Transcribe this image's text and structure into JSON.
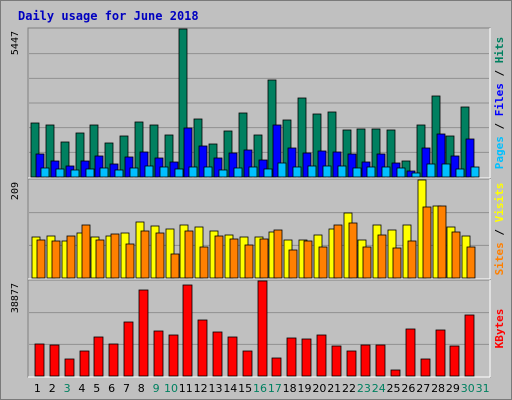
{
  "title": "Daily usage for June 2018",
  "chart_data": [
    {
      "type": "bar",
      "panel": "pages-files-hits",
      "ymax_label": "5447",
      "ylim": [
        0,
        5447
      ],
      "right_label": [
        {
          "text": "Pages",
          "color": "#00c0ff"
        },
        {
          "text": " / ",
          "color": "#000000"
        },
        {
          "text": "Files",
          "color": "#0000ff"
        },
        {
          "text": " / ",
          "color": "#000000"
        },
        {
          "text": "Hits",
          "color": "#008060"
        }
      ],
      "categories": [
        "1",
        "2",
        "3",
        "4",
        "5",
        "6",
        "7",
        "8",
        "9",
        "10",
        "11",
        "12",
        "13",
        "14",
        "15",
        "16",
        "17",
        "18",
        "19",
        "20",
        "21",
        "22",
        "23",
        "24",
        "25",
        "26",
        "27",
        "28",
        "29",
        "30"
      ],
      "series": [
        {
          "name": "Hits",
          "color": "#008060",
          "values": [
            1970,
            1900,
            1300,
            1630,
            1920,
            1250,
            1520,
            2040,
            1900,
            1550,
            5447,
            2120,
            1200,
            1710,
            2350,
            1550,
            3560,
            2090,
            2920,
            2330,
            2380,
            1730,
            1780,
            1760,
            1720,
            600,
            1900,
            2990,
            1500,
            2590
          ]
        },
        {
          "name": "Files",
          "color": "#0000ff",
          "values": [
            830,
            580,
            420,
            580,
            760,
            480,
            740,
            930,
            700,
            560,
            1800,
            1150,
            710,
            880,
            1010,
            620,
            1930,
            1080,
            870,
            950,
            930,
            860,
            550,
            830,
            510,
            230,
            1070,
            1580,
            770,
            1390
          ]
        },
        {
          "name": "Pages",
          "color": "#00c0ff",
          "values": [
            340,
            300,
            250,
            310,
            330,
            260,
            330,
            400,
            350,
            300,
            370,
            360,
            240,
            320,
            370,
            300,
            510,
            350,
            400,
            410,
            410,
            340,
            360,
            350,
            320,
            150,
            480,
            470,
            300,
            380
          ]
        }
      ]
    },
    {
      "type": "bar",
      "panel": "visits-sites",
      "ymax_label": "209",
      "ylim": [
        0,
        209
      ],
      "right_label": [
        {
          "text": "Sites",
          "color": "#ff8000"
        },
        {
          "text": " / ",
          "color": "#000000"
        },
        {
          "text": "Visits",
          "color": "#ffff00"
        }
      ],
      "categories": [
        "1",
        "2",
        "3",
        "4",
        "5",
        "6",
        "7",
        "8",
        "9",
        "10",
        "11",
        "12",
        "13",
        "14",
        "15",
        "16",
        "17",
        "18",
        "19",
        "20",
        "21",
        "22",
        "23",
        "24",
        "25",
        "26",
        "27",
        "28",
        "29",
        "30"
      ],
      "series": [
        {
          "name": "Visits",
          "color": "#ffff00",
          "values": [
            87,
            89,
            79,
            96,
            88,
            89,
            97,
            120,
            111,
            105,
            112,
            109,
            101,
            92,
            88,
            87,
            98,
            82,
            82,
            91,
            104,
            138,
            81,
            113,
            102,
            112,
            209,
            154,
            108,
            89
          ]
        },
        {
          "name": "Sites",
          "color": "#ff8000",
          "values": [
            81,
            79,
            90,
            112,
            82,
            94,
            73,
            101,
            97,
            52,
            100,
            66,
            89,
            84,
            71,
            83,
            103,
            60,
            79,
            67,
            114,
            118,
            66,
            91,
            65,
            78,
            152,
            153,
            98,
            67
          ]
        }
      ]
    },
    {
      "type": "bar",
      "panel": "kbytes",
      "ymax_label": "38877",
      "ylim": [
        0,
        38877
      ],
      "right_label": [
        {
          "text": "KBytes",
          "color": "#ff0000"
        }
      ],
      "categories": [
        "1",
        "2",
        "3",
        "4",
        "5",
        "6",
        "7",
        "8",
        "9",
        "10",
        "11",
        "12",
        "13",
        "14",
        "15",
        "16",
        "17",
        "18",
        "19",
        "20",
        "21",
        "22",
        "23",
        "24",
        "25",
        "26",
        "27",
        "28",
        "29",
        "30"
      ],
      "series": [
        {
          "name": "KBytes",
          "color": "#ff0000",
          "values": [
            13200,
            12500,
            6900,
            10200,
            15900,
            12900,
            22300,
            35300,
            18400,
            16600,
            37200,
            23000,
            18200,
            15800,
            10200,
            38877,
            7300,
            15400,
            15200,
            16600,
            12300,
            10300,
            12600,
            12600,
            2400,
            19400,
            6900,
            18900,
            12200,
            25100
          ]
        }
      ]
    }
  ],
  "day_labels": [
    {
      "text": "1",
      "color": "#000000"
    },
    {
      "text": "2",
      "color": "#000000"
    },
    {
      "text": "3",
      "color": "#008060"
    },
    {
      "text": "4",
      "color": "#000000"
    },
    {
      "text": "5",
      "color": "#000000"
    },
    {
      "text": "6",
      "color": "#000000"
    },
    {
      "text": "7",
      "color": "#000000"
    },
    {
      "text": "8",
      "color": "#000000"
    },
    {
      "text": "9",
      "color": "#008060"
    },
    {
      "text": "10",
      "color": "#008060"
    },
    {
      "text": "11",
      "color": "#000000"
    },
    {
      "text": "12",
      "color": "#000000"
    },
    {
      "text": "13",
      "color": "#000000"
    },
    {
      "text": "14",
      "color": "#000000"
    },
    {
      "text": "15",
      "color": "#000000"
    },
    {
      "text": "16",
      "color": "#008060"
    },
    {
      "text": "17",
      "color": "#008060"
    },
    {
      "text": "18",
      "color": "#000000"
    },
    {
      "text": "19",
      "color": "#000000"
    },
    {
      "text": "20",
      "color": "#000000"
    },
    {
      "text": "21",
      "color": "#000000"
    },
    {
      "text": "22",
      "color": "#000000"
    },
    {
      "text": "23",
      "color": "#008060"
    },
    {
      "text": "24",
      "color": "#008060"
    },
    {
      "text": "25",
      "color": "#000000"
    },
    {
      "text": "26",
      "color": "#000000"
    },
    {
      "text": "27",
      "color": "#000000"
    },
    {
      "text": "28",
      "color": "#000000"
    },
    {
      "text": "29",
      "color": "#000000"
    },
    {
      "text": "30",
      "color": "#008060"
    },
    {
      "text": "31",
      "color": "#008060"
    }
  ]
}
